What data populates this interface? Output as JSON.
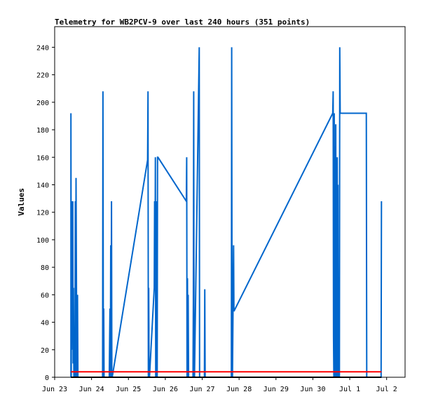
{
  "chart_data": {
    "type": "line",
    "title": "Telemetry for WB2PCV-9 over last 240 hours (351 points)",
    "xlabel": "",
    "ylabel": "Values",
    "xlim": [
      0,
      9.5
    ],
    "ylim": [
      0,
      255
    ],
    "grid": false,
    "legend": "none",
    "x_ticks": [
      {
        "x": 0,
        "label": "Jun 23"
      },
      {
        "x": 1,
        "label": "Jun 24"
      },
      {
        "x": 2,
        "label": "Jun 25"
      },
      {
        "x": 3,
        "label": "Jun 26"
      },
      {
        "x": 4,
        "label": "Jun 27"
      },
      {
        "x": 5,
        "label": "Jun 28"
      },
      {
        "x": 6,
        "label": "Jun 29"
      },
      {
        "x": 7,
        "label": "Jun 30"
      },
      {
        "x": 8,
        "label": "Jul 1"
      },
      {
        "x": 9,
        "label": "Jul 2"
      }
    ],
    "y_ticks": [
      0,
      20,
      40,
      60,
      80,
      100,
      120,
      140,
      160,
      180,
      200,
      220,
      240
    ],
    "series": [
      {
        "color": "#0066cc",
        "x": [
          0.44,
          0.44,
          0.45,
          0.45,
          0.46,
          0.47,
          0.48,
          0.49,
          0.5,
          0.51,
          0.52,
          0.53,
          0.55,
          0.56,
          0.57,
          0.58,
          0.6,
          0.62,
          0.63,
          0.65,
          0.66,
          0.66,
          1.3,
          1.31,
          1.32,
          1.33,
          1.34,
          1.35,
          1.48,
          1.5,
          1.51,
          1.52,
          1.53,
          1.54,
          1.55,
          1.56,
          2.52,
          2.53,
          2.54,
          2.55,
          2.56,
          2.57,
          2.7,
          2.71,
          2.72,
          2.73,
          2.74,
          2.75,
          2.76,
          2.77,
          2.78,
          2.79,
          2.8,
          3.57,
          3.58,
          3.59,
          3.6,
          3.61,
          3.62,
          3.63,
          3.75,
          3.76,
          3.77,
          3.78,
          3.79,
          3.92,
          3.93,
          3.94,
          4.06,
          4.07,
          4.08,
          4.79,
          4.8,
          4.81,
          4.82,
          4.85,
          4.86,
          7.54,
          7.55,
          7.56,
          7.57,
          7.58,
          7.59,
          7.6,
          7.61,
          7.62,
          7.63,
          7.64,
          7.65,
          7.66,
          7.67,
          7.68,
          7.69,
          7.7,
          7.71,
          7.72,
          7.73,
          7.74,
          7.75,
          7.76,
          7.77,
          7.78,
          7.79,
          7.8,
          7.81,
          7.82,
          7.83,
          8.45,
          8.46,
          8.85,
          8.86
        ],
        "y": [
          0,
          192,
          0,
          106,
          20,
          128,
          40,
          128,
          10,
          65,
          0,
          0,
          0,
          128,
          0,
          145,
          0,
          60,
          0,
          0,
          0,
          0,
          0,
          208,
          0,
          50,
          0,
          0,
          0,
          50,
          0,
          96,
          0,
          128,
          0,
          0,
          158,
          208,
          0,
          65,
          0,
          0,
          65,
          128,
          70,
          160,
          0,
          128,
          0,
          80,
          0,
          160,
          160,
          128,
          160,
          0,
          72,
          0,
          60,
          0,
          0,
          56,
          208,
          0,
          0,
          240,
          0,
          0,
          0,
          64,
          0,
          0,
          240,
          0,
          0,
          96,
          48,
          192,
          208,
          30,
          0,
          192,
          0,
          168,
          0,
          184,
          0,
          100,
          0,
          160,
          0,
          140,
          0,
          0,
          64,
          0,
          240,
          192,
          192,
          192,
          192,
          192,
          192,
          192,
          192,
          192,
          192,
          192,
          0,
          0,
          128
        ]
      },
      {
        "color": "#ff0000",
        "x": [
          0.44,
          8.86
        ],
        "y": [
          4,
          4
        ]
      }
    ]
  }
}
